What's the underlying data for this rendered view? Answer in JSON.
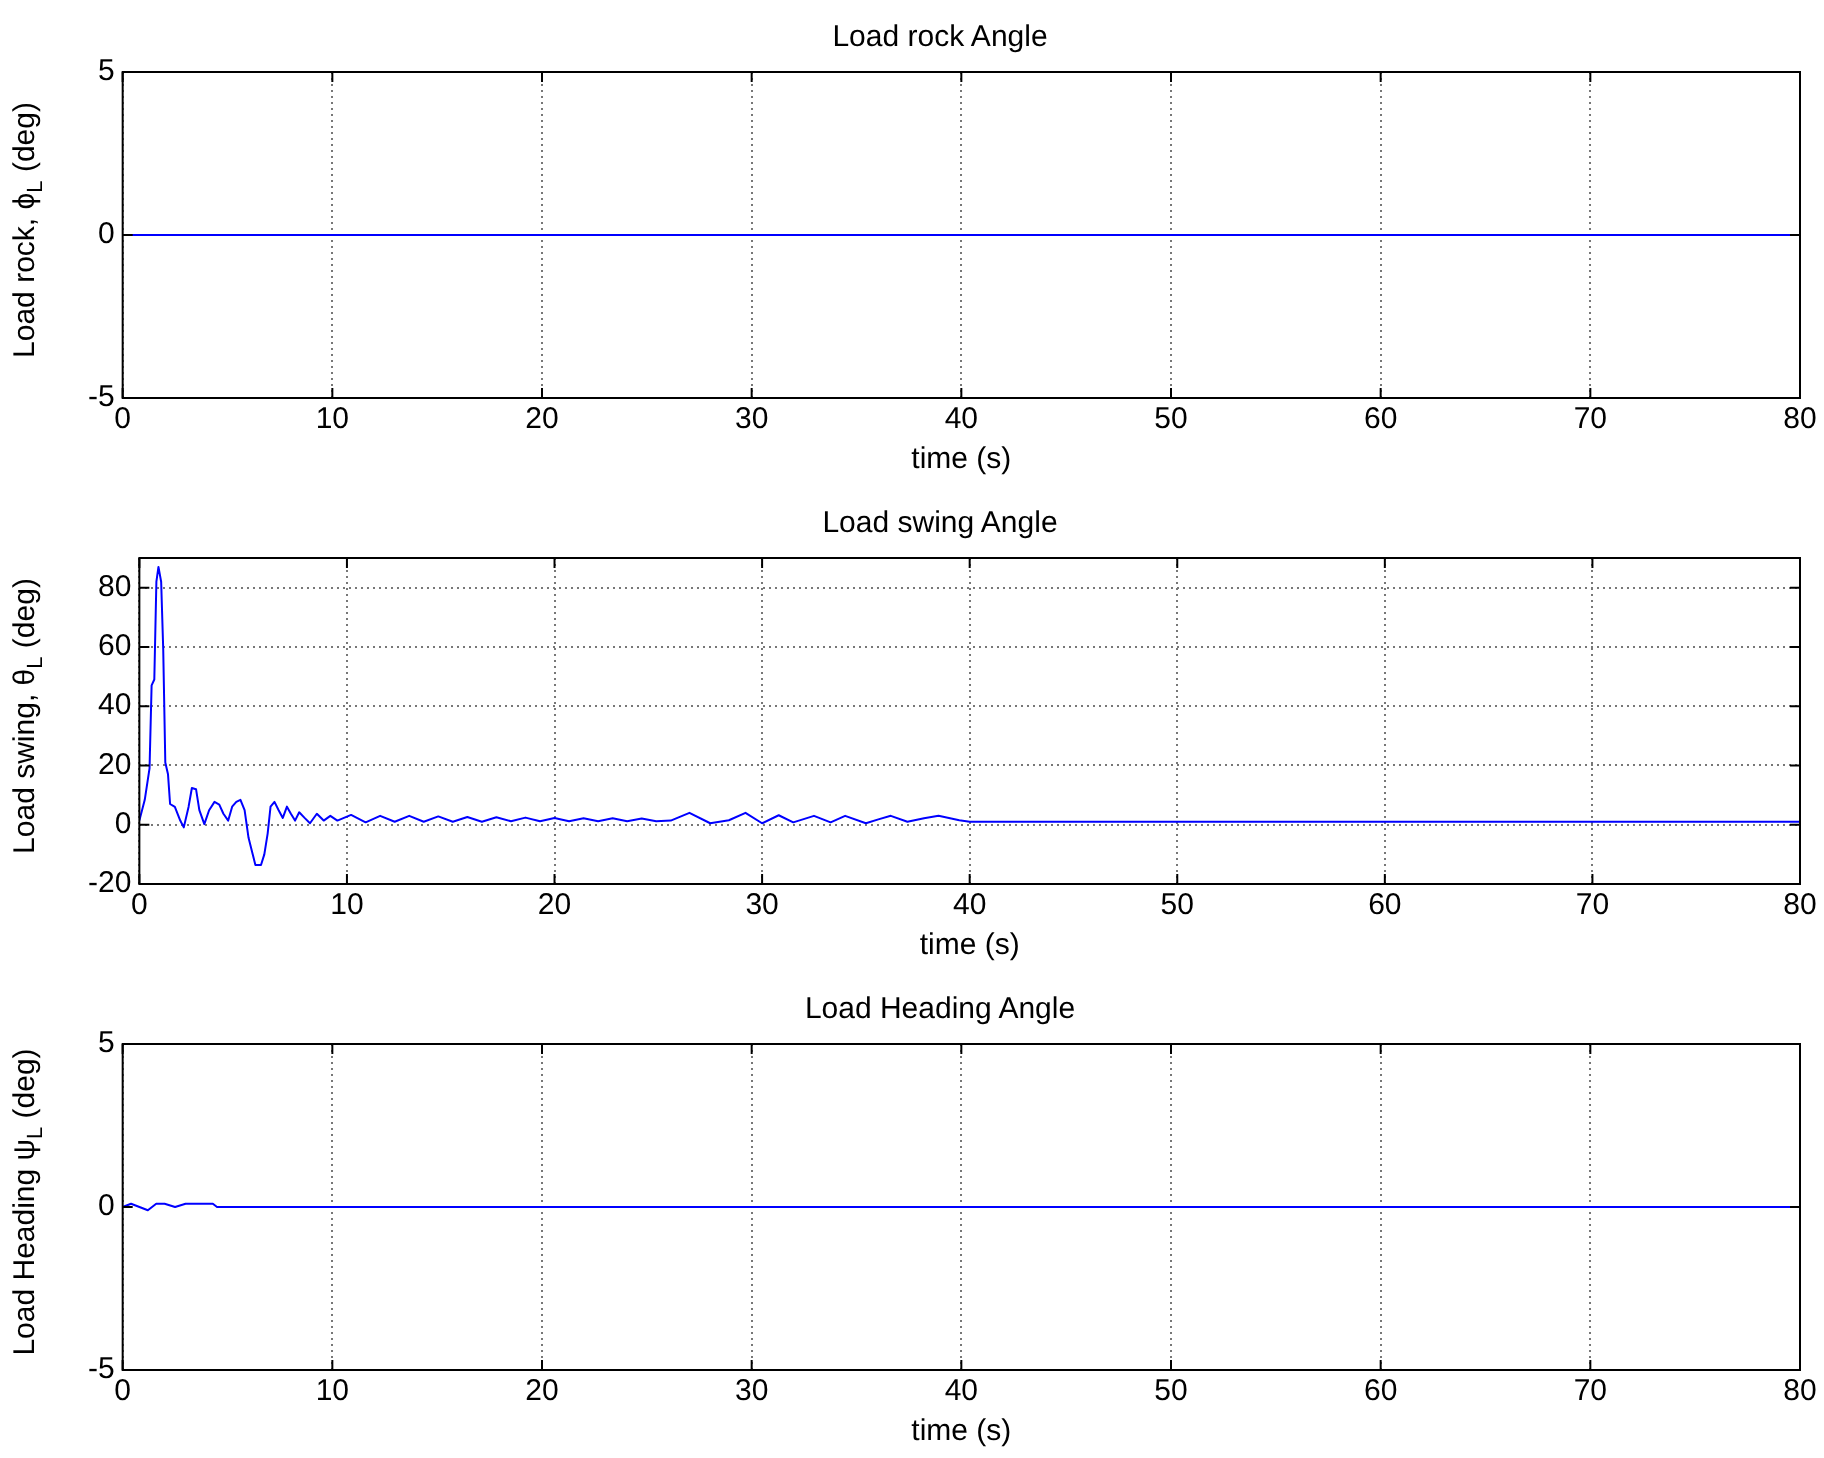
{
  "chart_data": [
    {
      "type": "line",
      "title": "Load rock Angle",
      "xlabel": "time (s)",
      "ylabel": "Load rock, ϕ$_{L}$ (deg)",
      "xlim": [
        0,
        80
      ],
      "xticks": [
        0,
        10,
        20,
        30,
        40,
        50,
        60,
        70,
        80
      ],
      "ylim": [
        -5,
        5
      ],
      "yticks": [
        -5,
        0,
        5
      ],
      "grid": "x",
      "legend": false,
      "marker": "none",
      "line_style": "solid",
      "series": [
        {
          "color": "#0000ff",
          "x": [
            0,
            80
          ],
          "values": [
            0,
            0
          ]
        }
      ]
    },
    {
      "type": "line",
      "title": "Load swing Angle",
      "xlabel": "time (s)",
      "ylabel": "Load swing, θ$_{L}$ (deg)",
      "xlim": [
        0,
        80
      ],
      "xticks": [
        0,
        10,
        20,
        30,
        40,
        50,
        60,
        70,
        80
      ],
      "ylim": [
        -20,
        90
      ],
      "yticks": [
        -20,
        0,
        20,
        40,
        60,
        80
      ],
      "grid": true,
      "legend": false,
      "marker": "none",
      "line_style": "solid",
      "series": [
        {
          "color": "#0000ff",
          "x": [
            0,
            0.26,
            0.49,
            0.59,
            0.72,
            0.82,
            0.92,
            1.05,
            1.15,
            1.25,
            1.38,
            1.48,
            1.71,
            1.97,
            2.14,
            2.37,
            2.53,
            2.73,
            2.89,
            3.13,
            3.36,
            3.62,
            3.85,
            4.05,
            4.28,
            4.47,
            4.67,
            4.87,
            5.07,
            5.26,
            5.46,
            5.59,
            5.86,
            6.02,
            6.18,
            6.32,
            6.51,
            6.71,
            6.91,
            7.11,
            7.3,
            7.5,
            7.7,
            7.96,
            8.22,
            8.55,
            8.88,
            9.2,
            9.54,
            10.2,
            10.9,
            11.6,
            12.3,
            13,
            13.7,
            14.4,
            15.1,
            15.8,
            16.5,
            17.2,
            17.9,
            18.6,
            19.3,
            20,
            20.7,
            21.4,
            22.1,
            22.8,
            23.5,
            24.2,
            24.9,
            25.6,
            26.5,
            27.5,
            28.4,
            29.2,
            30,
            30.8,
            31.5,
            32.5,
            33.3,
            34,
            35,
            35.6,
            36.2,
            37,
            37.8,
            38.5,
            39.5,
            40,
            80
          ],
          "values": [
            1.4,
            8.4,
            19,
            47,
            49,
            82,
            87,
            82,
            59,
            21,
            17,
            7,
            6,
            1.4,
            -0.9,
            6,
            12.4,
            12,
            4.9,
            0.2,
            4.9,
            7.7,
            6.8,
            3.7,
            1.4,
            6.1,
            7.7,
            8.4,
            4.9,
            -4.4,
            -10,
            -13.6,
            -13.6,
            -10,
            -3,
            6.1,
            7.7,
            4.9,
            2.3,
            6.1,
            3.7,
            1.4,
            4.2,
            2.3,
            0.5,
            3.7,
            1.4,
            3,
            1.4,
            3.3,
            0.8,
            3,
            1,
            3,
            1,
            2.8,
            1,
            2.6,
            1,
            2.5,
            1.2,
            2.4,
            1.2,
            2.3,
            1.2,
            2.2,
            1.2,
            2.2,
            1.2,
            2.1,
            1.2,
            1.4,
            4,
            0.5,
            1.5,
            4,
            0.5,
            3.2,
            0.8,
            3,
            0.8,
            3,
            0.5,
            1.8,
            3,
            1,
            2.2,
            3,
            1.5,
            1,
            1
          ]
        }
      ]
    },
    {
      "type": "line",
      "title": "Load Heading Angle",
      "xlabel": "time (s)",
      "ylabel": "Load Heading ψ$_{L}$ (deg)",
      "xlim": [
        0,
        80
      ],
      "xticks": [
        0,
        10,
        20,
        30,
        40,
        50,
        60,
        70,
        80
      ],
      "ylim": [
        -5,
        5
      ],
      "yticks": [
        -5,
        0,
        5
      ],
      "grid": "x",
      "legend": false,
      "marker": "none",
      "line_style": "solid",
      "series": [
        {
          "color": "#0000ff",
          "x": [
            0,
            0.4,
            0.8,
            1.2,
            1.6,
            2,
            2.5,
            3,
            3.5,
            4.3,
            4.5,
            80
          ],
          "values": [
            0,
            0.1,
            0,
            -0.1,
            0.1,
            0.1,
            0,
            0.1,
            0.1,
            0.1,
            0,
            0
          ]
        }
      ]
    }
  ]
}
